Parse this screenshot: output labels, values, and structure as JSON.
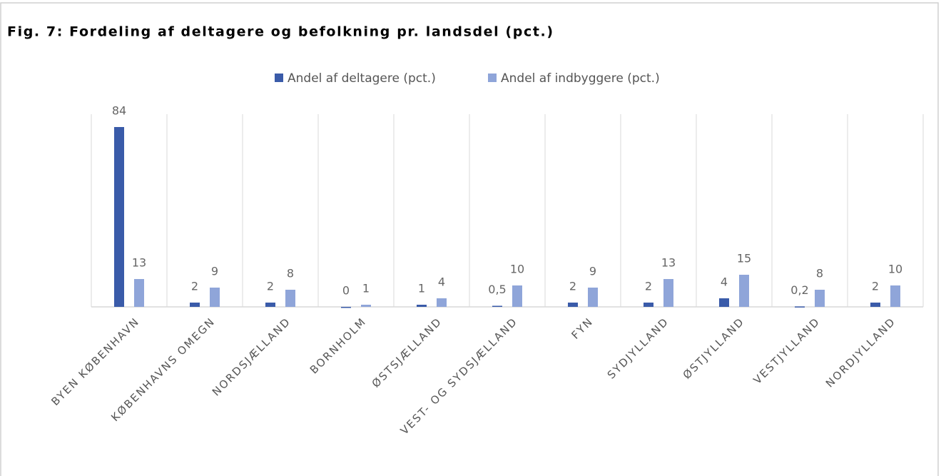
{
  "chart_data": {
    "type": "bar",
    "title": "Fig. 7: Fordeling af deltagere og befolkning pr. landsdel (pct.)",
    "categories": [
      "BYEN KØBENHAVN",
      "KØBENHAVNS OMEGN",
      "NORDSJÆLLAND",
      "BORNHOLM",
      "ØSTSJÆLLAND",
      "VEST- OG SYDSJÆLLAND",
      "FYN",
      "SYDJYLLAND",
      "ØSTJYLLAND",
      "VESTJYLLAND",
      "NORDJYLLAND"
    ],
    "series": [
      {
        "name": "Andel af deltagere (pct.)",
        "color": "#3a5ba9",
        "values": [
          84,
          2,
          2,
          0,
          1,
          0.5,
          2,
          2,
          4,
          0.2,
          2
        ],
        "value_labels": [
          "84",
          "2",
          "2",
          "0",
          "1",
          "0,5",
          "2",
          "2",
          "4",
          "0,2",
          "2"
        ]
      },
      {
        "name": "Andel af indbyggere (pct.)",
        "color": "#8fa5d9",
        "values": [
          13,
          9,
          8,
          1,
          4,
          10,
          9,
          13,
          15,
          8,
          10
        ],
        "value_labels": [
          "13",
          "9",
          "8",
          "1",
          "4",
          "10",
          "9",
          "13",
          "15",
          "8",
          "10"
        ]
      }
    ],
    "ylim": [
      0,
      90
    ],
    "legend": "top"
  }
}
